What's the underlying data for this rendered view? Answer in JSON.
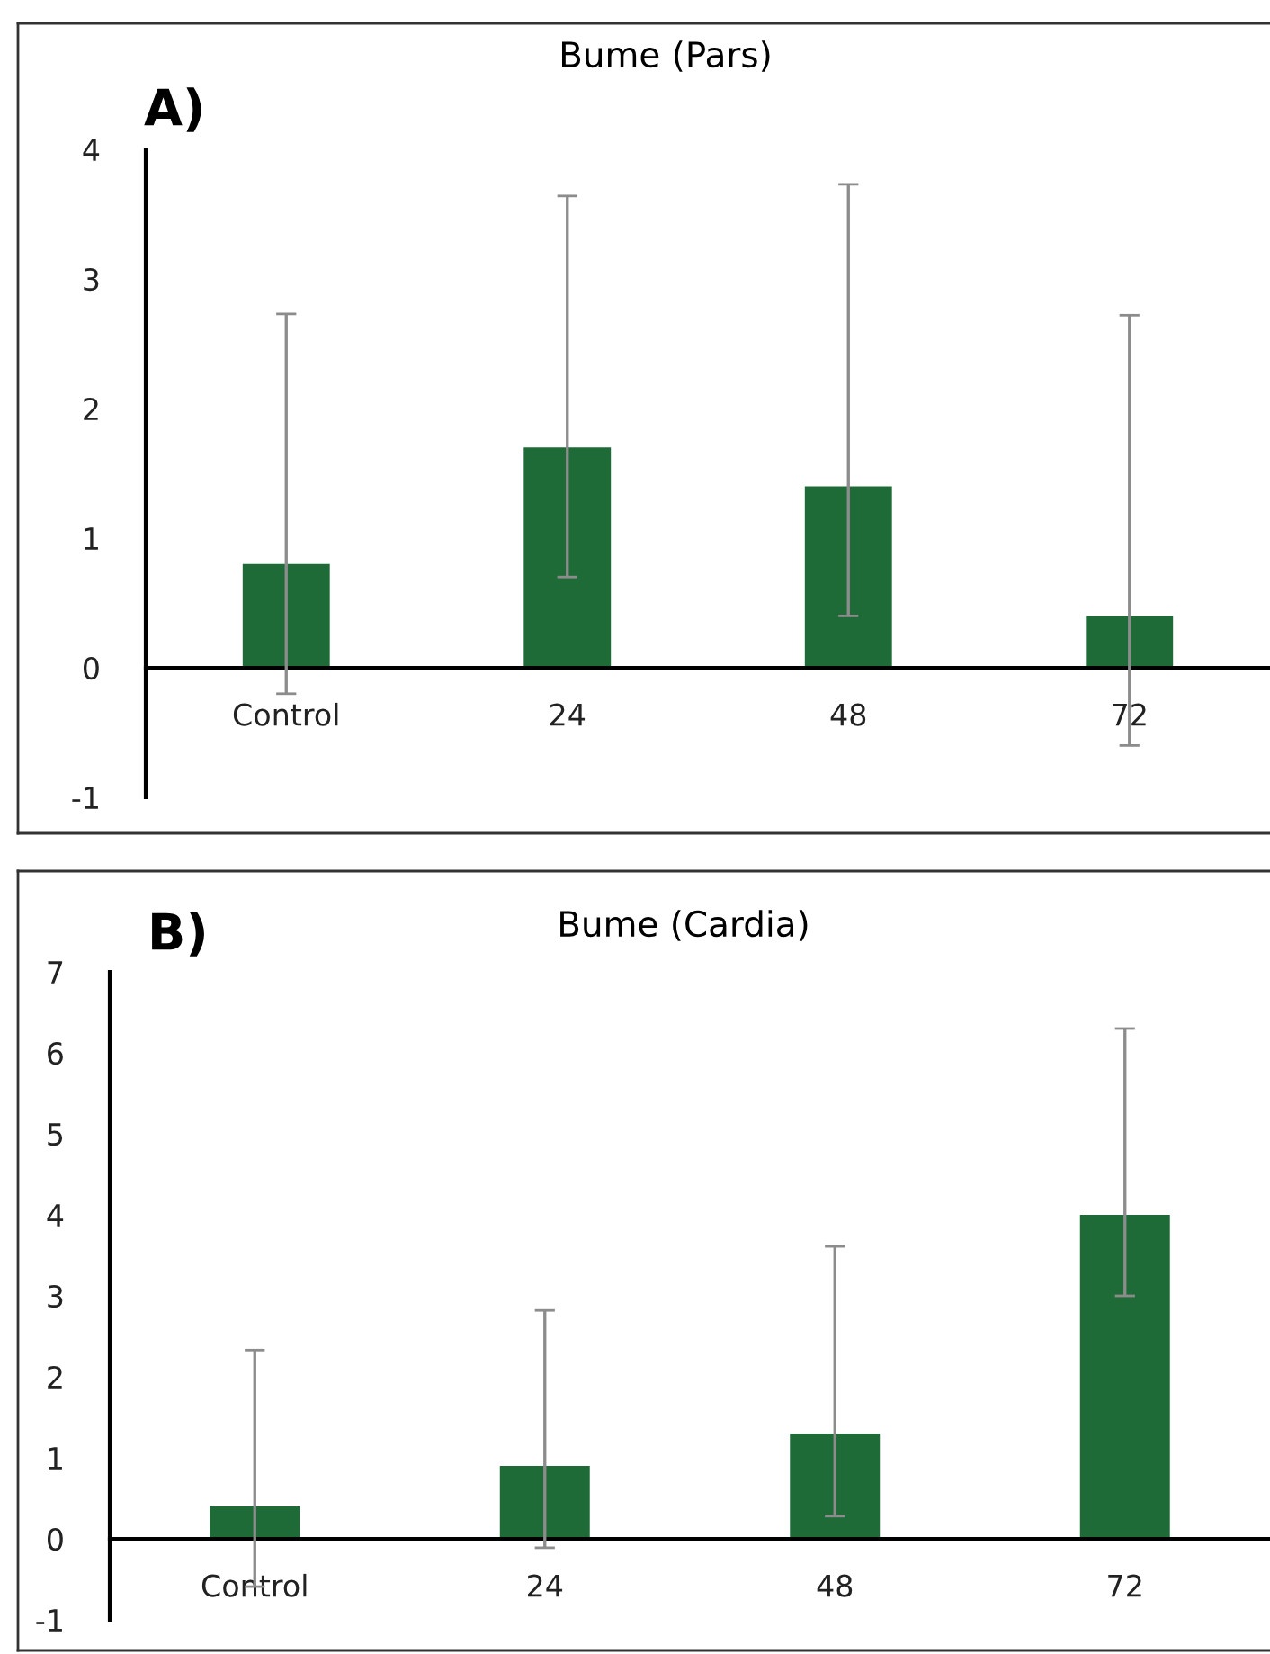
{
  "chart_data": [
    {
      "type": "bar",
      "title": "Bume (Pars)",
      "annotations": [
        "A)"
      ],
      "categories": [
        "Control",
        "24",
        "48",
        "72"
      ],
      "values": [
        0.8,
        1.7,
        1.4,
        0.4
      ],
      "color": "#1e6b37",
      "errors": [
        [
          -0.2,
          2.73
        ],
        [
          0.7,
          3.64
        ],
        [
          0.4,
          3.73
        ],
        [
          -0.6,
          2.72
        ]
      ],
      "ylim": [
        -1,
        4
      ],
      "yticks": [
        -1,
        0,
        1,
        2,
        3,
        4
      ],
      "grid": false,
      "legend": false
    },
    {
      "type": "bar",
      "title": "Bume (Cardia)",
      "annotations": [
        "B)"
      ],
      "categories": [
        "Control",
        "24",
        "48",
        "72"
      ],
      "values": [
        0.4,
        0.9,
        1.3,
        4.0
      ],
      "color": "#1e6b37",
      "errors": [
        [
          -0.59,
          2.33
        ],
        [
          -0.11,
          2.82
        ],
        [
          0.28,
          3.61
        ],
        [
          3.0,
          6.3
        ]
      ],
      "ylim": [
        -1,
        7
      ],
      "yticks": [
        -1,
        0,
        1,
        2,
        3,
        4,
        5,
        6,
        7
      ],
      "grid": false,
      "legend": false
    }
  ]
}
